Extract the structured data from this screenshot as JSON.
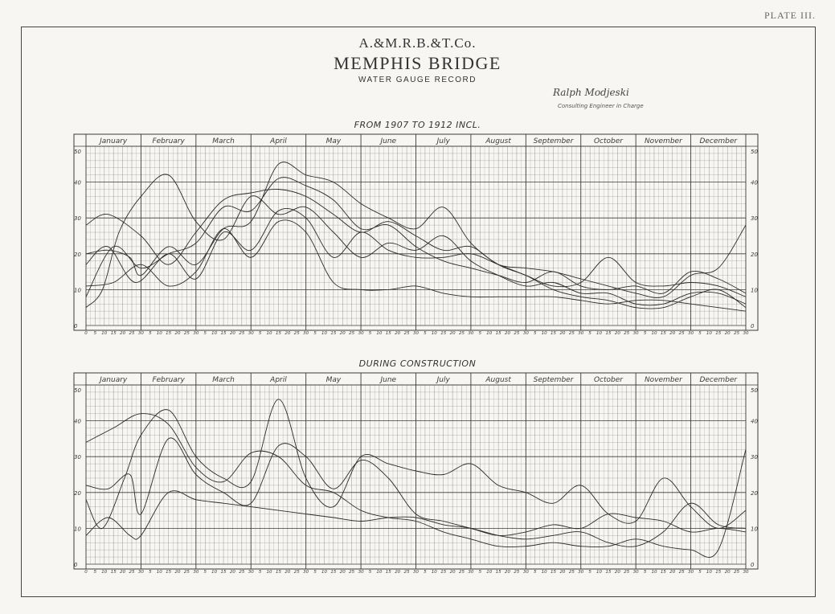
{
  "plate_label": "PLATE III.",
  "company": "A.&M.R.B.&T.Co.",
  "title": "MEMPHIS BRIDGE",
  "subtitle": "WATER GAUGE RECORD",
  "signature": "Ralph Modjeski",
  "signature_caption": "Consulting Engineer in Charge",
  "colors": {
    "ink": "#3a3a3a",
    "grid": "#8a8a8a",
    "paper": "#f8f6f2"
  },
  "chart_data": [
    {
      "type": "line",
      "title": "FROM 1907 TO 1912 INCL.",
      "months": [
        "January",
        "February",
        "March",
        "April",
        "May",
        "June",
        "July",
        "August",
        "September",
        "October",
        "November",
        "December"
      ],
      "day_ticks": [
        "0",
        "5",
        "10",
        "15",
        "20",
        "25",
        "30"
      ],
      "y_ticks": [
        "0",
        "10",
        "20",
        "30",
        "40",
        "50"
      ],
      "ylim": [
        0,
        50
      ],
      "xlim": [
        0,
        12
      ],
      "grid": true,
      "series": [
        {
          "points": [
            [
              0,
              5
            ],
            [
              0.3,
              10
            ],
            [
              0.6,
              26
            ],
            [
              1.0,
              36
            ],
            [
              1.5,
              42
            ],
            [
              2.0,
              29
            ],
            [
              2.5,
              24
            ],
            [
              3.0,
              36
            ],
            [
              3.5,
              31
            ],
            [
              4.0,
              33
            ],
            [
              4.5,
              26
            ],
            [
              5.0,
              19
            ],
            [
              5.5,
              23
            ],
            [
              6.0,
              21
            ],
            [
              6.5,
              25
            ],
            [
              7.0,
              18
            ],
            [
              7.5,
              14
            ],
            [
              8.0,
              11
            ],
            [
              8.5,
              12
            ],
            [
              9.0,
              9
            ],
            [
              9.5,
              9
            ],
            [
              10.0,
              6
            ],
            [
              10.5,
              6
            ],
            [
              11.0,
              9
            ],
            [
              11.5,
              9
            ],
            [
              12.0,
              6
            ]
          ]
        },
        {
          "points": [
            [
              0,
              8
            ],
            [
              0.5,
              22
            ],
            [
              1.0,
              16
            ],
            [
              1.5,
              20
            ],
            [
              2.0,
              23
            ],
            [
              2.5,
              33
            ],
            [
              3.0,
              32
            ],
            [
              3.5,
              41
            ],
            [
              4.0,
              39
            ],
            [
              4.5,
              35
            ],
            [
              5.0,
              27
            ],
            [
              5.5,
              28
            ],
            [
              6.0,
              22
            ],
            [
              6.5,
              18
            ],
            [
              7.0,
              16
            ],
            [
              7.5,
              14
            ],
            [
              8.0,
              12
            ],
            [
              8.5,
              15
            ],
            [
              9.0,
              11
            ],
            [
              9.5,
              10
            ],
            [
              10.0,
              11
            ],
            [
              10.5,
              9
            ],
            [
              11.0,
              15
            ],
            [
              11.5,
              13
            ],
            [
              12.0,
              9
            ]
          ]
        },
        {
          "points": [
            [
              0,
              28
            ],
            [
              0.4,
              31
            ],
            [
              1.0,
              25
            ],
            [
              1.5,
              17
            ],
            [
              2.0,
              26
            ],
            [
              2.5,
              35
            ],
            [
              3.0,
              37
            ],
            [
              3.5,
              38
            ],
            [
              4.0,
              36
            ],
            [
              4.5,
              31
            ],
            [
              5.0,
              26
            ],
            [
              5.5,
              29
            ],
            [
              6.0,
              25
            ],
            [
              6.5,
              21
            ],
            [
              7.0,
              22
            ],
            [
              7.5,
              17
            ],
            [
              8.0,
              16
            ],
            [
              8.5,
              15
            ],
            [
              9.0,
              13
            ],
            [
              9.5,
              11
            ],
            [
              10.0,
              9
            ],
            [
              10.5,
              8
            ],
            [
              11.0,
              14
            ],
            [
              11.5,
              16
            ],
            [
              12.0,
              28
            ]
          ]
        },
        {
          "points": [
            [
              0,
              20
            ],
            [
              0.4,
              21
            ],
            [
              0.8,
              19
            ],
            [
              1.0,
              14
            ],
            [
              1.5,
              22
            ],
            [
              2.0,
              17
            ],
            [
              2.5,
              27
            ],
            [
              3.0,
              29
            ],
            [
              3.5,
              45
            ],
            [
              4.0,
              42
            ],
            [
              4.5,
              40
            ],
            [
              5.0,
              34
            ],
            [
              5.5,
              30
            ],
            [
              6.0,
              27
            ],
            [
              6.5,
              33
            ],
            [
              7.0,
              23
            ],
            [
              7.5,
              17
            ],
            [
              8.0,
              14
            ],
            [
              8.5,
              10
            ],
            [
              9.0,
              8
            ],
            [
              9.5,
              7
            ],
            [
              10.0,
              5
            ],
            [
              10.5,
              5
            ],
            [
              11.0,
              8
            ],
            [
              11.5,
              10
            ],
            [
              12.0,
              5
            ]
          ]
        },
        {
          "points": [
            [
              0,
              17
            ],
            [
              0.4,
              22
            ],
            [
              0.9,
              12
            ],
            [
              1.5,
              20
            ],
            [
              2.0,
              13
            ],
            [
              2.5,
              26
            ],
            [
              3.0,
              21
            ],
            [
              3.5,
              32
            ],
            [
              4.0,
              30
            ],
            [
              4.5,
              19
            ],
            [
              5.0,
              26
            ],
            [
              5.5,
              21
            ],
            [
              6.0,
              19
            ],
            [
              6.5,
              19
            ],
            [
              7.0,
              20
            ],
            [
              7.5,
              17
            ],
            [
              8.0,
              14
            ],
            [
              8.5,
              11
            ],
            [
              9.0,
              12
            ],
            [
              9.5,
              19
            ],
            [
              10.0,
              12
            ],
            [
              10.5,
              11
            ],
            [
              11.0,
              12
            ],
            [
              11.5,
              11
            ],
            [
              12.0,
              8
            ]
          ]
        },
        {
          "points": [
            [
              0,
              11
            ],
            [
              0.5,
              12
            ],
            [
              1.0,
              17
            ],
            [
              1.5,
              11
            ],
            [
              2.0,
              15
            ],
            [
              2.5,
              27
            ],
            [
              3.0,
              19
            ],
            [
              3.5,
              29
            ],
            [
              4.0,
              26
            ],
            [
              4.5,
              12
            ],
            [
              5.0,
              10
            ],
            [
              5.5,
              10
            ],
            [
              6.0,
              11
            ],
            [
              6.5,
              9
            ],
            [
              7.0,
              8
            ],
            [
              7.5,
              8
            ],
            [
              8.0,
              8
            ],
            [
              8.5,
              8
            ],
            [
              9.0,
              7
            ],
            [
              9.5,
              6
            ],
            [
              10.0,
              7
            ],
            [
              10.5,
              7
            ],
            [
              11.0,
              6
            ],
            [
              11.5,
              5
            ],
            [
              12.0,
              4
            ]
          ]
        }
      ]
    },
    {
      "type": "line",
      "title": "DURING CONSTRUCTION",
      "months": [
        "January",
        "February",
        "March",
        "April",
        "May",
        "June",
        "July",
        "August",
        "September",
        "October",
        "November",
        "December"
      ],
      "day_ticks": [
        "0",
        "5",
        "10",
        "15",
        "20",
        "25",
        "30"
      ],
      "y_ticks": [
        "0",
        "10",
        "20",
        "30",
        "40",
        "50"
      ],
      "ylim": [
        0,
        50
      ],
      "xlim": [
        0,
        12
      ],
      "grid": true,
      "series": [
        {
          "points": [
            [
              0,
              34
            ],
            [
              0.5,
              38
            ],
            [
              1.0,
              42
            ],
            [
              1.5,
              39
            ],
            [
              2.0,
              27
            ],
            [
              2.5,
              23
            ],
            [
              3.0,
              31
            ],
            [
              3.5,
              30
            ],
            [
              4.0,
              22
            ],
            [
              4.5,
              20
            ],
            [
              5.0,
              15
            ],
            [
              5.5,
              13
            ],
            [
              6.0,
              12
            ],
            [
              6.5,
              9
            ],
            [
              7.0,
              7
            ],
            [
              7.5,
              5
            ],
            [
              8.0,
              5
            ],
            [
              8.5,
              6
            ],
            [
              9.0,
              5
            ],
            [
              9.5,
              5
            ],
            [
              10.0,
              7
            ],
            [
              10.5,
              5
            ],
            [
              11.0,
              4
            ],
            [
              11.5,
              4
            ],
            [
              12.0,
              32
            ]
          ]
        },
        {
          "points": [
            [
              0,
              18
            ],
            [
              0.3,
              10
            ],
            [
              0.7,
              24
            ],
            [
              1.0,
              36
            ],
            [
              1.5,
              43
            ],
            [
              2.0,
              30
            ],
            [
              2.5,
              24
            ],
            [
              3.0,
              23
            ],
            [
              3.5,
              46
            ],
            [
              4.0,
              24
            ],
            [
              4.5,
              16
            ],
            [
              5.0,
              30
            ],
            [
              5.5,
              28
            ],
            [
              6.0,
              26
            ],
            [
              6.5,
              25
            ],
            [
              7.0,
              28
            ],
            [
              7.5,
              22
            ],
            [
              8.0,
              20
            ],
            [
              8.5,
              17
            ],
            [
              9.0,
              22
            ],
            [
              9.5,
              14
            ],
            [
              10.0,
              12
            ],
            [
              10.5,
              24
            ],
            [
              11.0,
              16
            ],
            [
              11.5,
              10
            ],
            [
              12.0,
              15
            ]
          ]
        },
        {
          "points": [
            [
              0,
              22
            ],
            [
              0.4,
              21
            ],
            [
              0.8,
              25
            ],
            [
              1.0,
              14
            ],
            [
              1.5,
              35
            ],
            [
              2.0,
              25
            ],
            [
              2.5,
              20
            ],
            [
              3.0,
              17
            ],
            [
              3.5,
              33
            ],
            [
              4.0,
              30
            ],
            [
              4.5,
              21
            ],
            [
              5.0,
              29
            ],
            [
              5.5,
              24
            ],
            [
              6.0,
              14
            ],
            [
              6.5,
              12
            ],
            [
              7.0,
              10
            ],
            [
              7.5,
              8
            ],
            [
              8.0,
              9
            ],
            [
              8.5,
              11
            ],
            [
              9.0,
              10
            ],
            [
              9.5,
              14
            ],
            [
              10.0,
              13
            ],
            [
              10.5,
              12
            ],
            [
              11.0,
              9
            ],
            [
              11.5,
              10
            ],
            [
              12.0,
              9
            ]
          ]
        },
        {
          "points": [
            [
              0,
              8
            ],
            [
              0.4,
              13
            ],
            [
              0.8,
              8
            ],
            [
              1.0,
              8
            ],
            [
              1.5,
              20
            ],
            [
              2.0,
              18
            ],
            [
              2.5,
              17
            ],
            [
              3.0,
              16
            ],
            [
              3.5,
              15
            ],
            [
              4.0,
              14
            ],
            [
              4.5,
              13
            ],
            [
              5.0,
              12
            ],
            [
              5.5,
              13
            ],
            [
              6.0,
              13
            ],
            [
              6.5,
              11
            ],
            [
              7.0,
              10
            ],
            [
              7.5,
              8
            ],
            [
              8.0,
              7
            ],
            [
              8.5,
              8
            ],
            [
              9.0,
              9
            ],
            [
              9.5,
              6
            ],
            [
              10.0,
              5
            ],
            [
              10.5,
              9
            ],
            [
              11.0,
              17
            ],
            [
              11.5,
              11
            ],
            [
              12.0,
              10
            ]
          ]
        }
      ]
    }
  ]
}
